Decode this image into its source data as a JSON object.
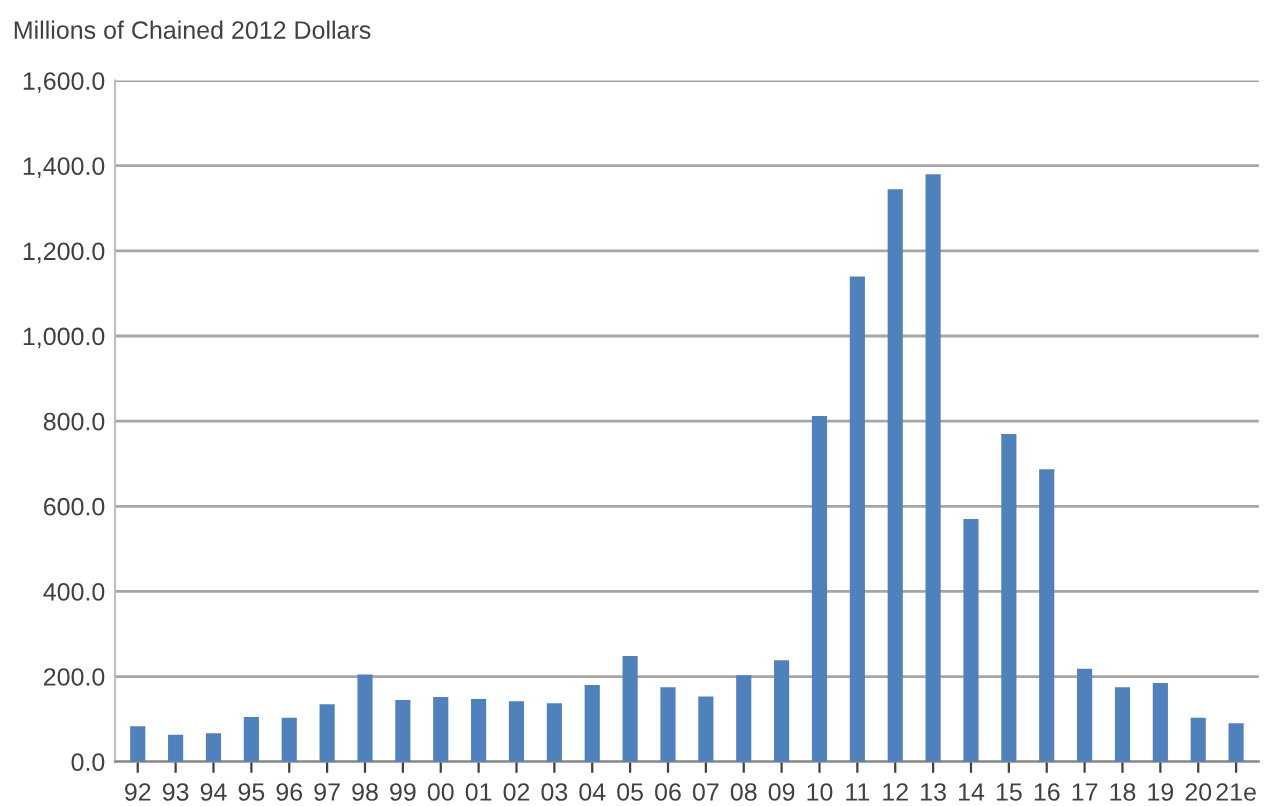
{
  "chart_data": {
    "type": "bar",
    "ylabel": "Millions of Chained 2012 Dollars",
    "categories": [
      "92",
      "93",
      "94",
      "95",
      "96",
      "97",
      "98",
      "99",
      "00",
      "01",
      "02",
      "03",
      "04",
      "05",
      "06",
      "07",
      "08",
      "09",
      "10",
      "11",
      "12",
      "13",
      "14",
      "15",
      "16",
      "17",
      "18",
      "19",
      "20",
      "21e"
    ],
    "values": [
      83,
      63,
      67,
      105,
      103,
      135,
      205,
      145,
      152,
      147,
      142,
      137,
      180,
      248,
      175,
      153,
      203,
      238,
      812,
      1140,
      1345,
      1380,
      570,
      770,
      687,
      218,
      175,
      185,
      103,
      90
    ],
    "color": "#4f81bd",
    "ylim": [
      0,
      1600
    ],
    "yticks": [
      {
        "value": 0,
        "label": "0.0"
      },
      {
        "value": 200,
        "label": "200.0"
      },
      {
        "value": 400,
        "label": "400.0"
      },
      {
        "value": 600,
        "label": "600.0"
      },
      {
        "value": 800,
        "label": "800.0"
      },
      {
        "value": 1000,
        "label": "1,000.0"
      },
      {
        "value": 1200,
        "label": "1,200.0"
      },
      {
        "value": 1400,
        "label": "1,400.0"
      },
      {
        "value": 1600,
        "label": "1,600.0"
      }
    ],
    "grid": "y"
  }
}
